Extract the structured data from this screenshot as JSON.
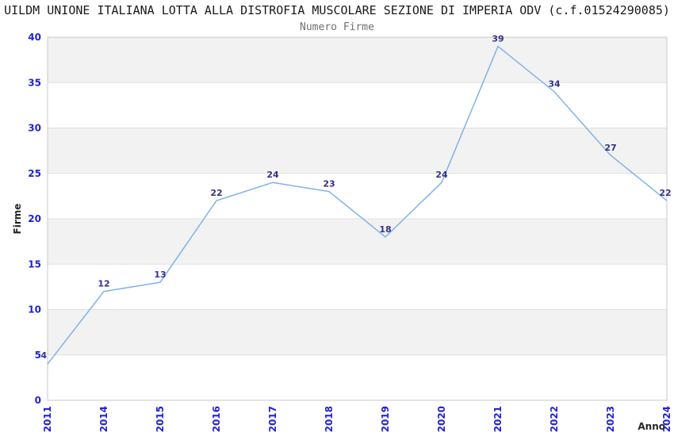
{
  "chart_data": {
    "type": "line",
    "title": "UILDM UNIONE ITALIANA LOTTA ALLA DISTROFIA MUSCOLARE SEZIONE DI IMPERIA ODV (c.f.01524290085)",
    "subtitle": "Numero Firme",
    "categories": [
      "2011",
      "2014",
      "2015",
      "2016",
      "2017",
      "2018",
      "2019",
      "2020",
      "2021",
      "2022",
      "2023",
      "2024"
    ],
    "values": [
      4,
      12,
      13,
      22,
      24,
      23,
      18,
      24,
      39,
      34,
      27,
      22
    ],
    "xlabel": "Anno",
    "ylabel": "Firme",
    "ylim": [
      0,
      40
    ],
    "ytick_step": 5,
    "yticks": [
      0,
      5,
      10,
      15,
      20,
      25,
      30,
      35,
      40
    ],
    "grid": "horizontal",
    "band_pattern": "alternate-gray",
    "legend": "none",
    "colors": {
      "line": "#7fb2e8",
      "tick_label": "#2222d6",
      "data_label": "#32328e",
      "band": "#f2f2f2",
      "grid": "#e0e0e0",
      "frame": "#c8c8c8",
      "title": "#1a1a1a",
      "subtitle": "#707070",
      "axis_title": "#262626",
      "background": "#ffffff"
    }
  }
}
